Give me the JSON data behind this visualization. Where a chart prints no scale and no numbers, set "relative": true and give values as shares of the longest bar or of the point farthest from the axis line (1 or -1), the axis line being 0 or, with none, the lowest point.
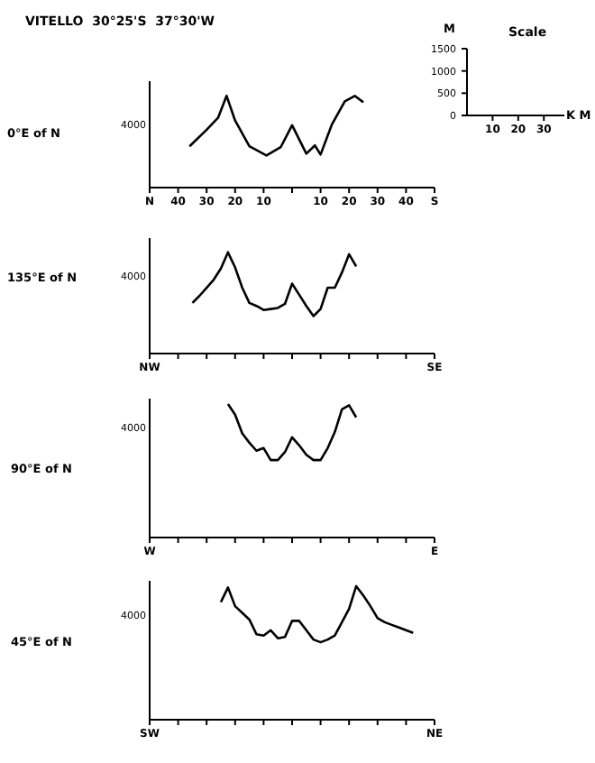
{
  "chart_data": [
    {
      "type": "line",
      "title": "VITELLO  30°25'S  37°30'W",
      "ylabel": "0°E of N",
      "marker": "none",
      "relative": true,
      "annotations": [
        "4000"
      ],
      "xlim": [
        -50,
        50
      ],
      "xticks": [
        {
          "value": -50,
          "label": "N"
        },
        {
          "value": -40,
          "label": "40"
        },
        {
          "value": -30,
          "label": "30"
        },
        {
          "value": -20,
          "label": "20"
        },
        {
          "value": -10,
          "label": "10"
        },
        {
          "value": 0,
          "label": null
        },
        {
          "value": 10,
          "label": "10"
        },
        {
          "value": 20,
          "label": "20"
        },
        {
          "value": 30,
          "label": "30"
        },
        {
          "value": 40,
          "label": "40"
        },
        {
          "value": 50,
          "label": "S"
        }
      ],
      "x": [
        -36,
        -30,
        -26,
        -23,
        -20,
        -15,
        -9,
        -4,
        0,
        5,
        8,
        10,
        14,
        18.5,
        22,
        25
      ],
      "series": [
        {
          "color": "#000000",
          "values": [
            0.45,
            0.63,
            0.76,
            1,
            0.73,
            0.45,
            0.35,
            0.44,
            0.68,
            0.37,
            0.46,
            0.36,
            0.69,
            0.94,
            1,
            0.93
          ]
        }
      ]
    },
    {
      "type": "line",
      "ylabel": "135°E of N",
      "marker": "none",
      "relative": true,
      "annotations": [
        "4000"
      ],
      "categories": [
        "NW",
        null,
        null,
        null,
        null,
        null,
        null,
        null,
        null,
        null,
        null,
        null,
        null,
        null,
        null,
        null,
        null,
        null,
        null,
        null,
        null,
        null,
        null,
        null,
        null,
        null,
        null,
        null,
        null,
        null,
        null,
        null,
        null,
        null,
        null,
        null,
        null,
        null,
        null,
        null,
        "SE"
      ],
      "series": [
        {
          "color": "#000000",
          "values": [
            null,
            null,
            null,
            null,
            null,
            null,
            0.5,
            0.57,
            0.65,
            0.73,
            0.84,
            1,
            0.85,
            0.65,
            0.5,
            0.47,
            0.43,
            0.44,
            0.45,
            0.49,
            0.69,
            0.58,
            0.47,
            0.37,
            0.44,
            0.65,
            0.65,
            0.8,
            0.98,
            0.86,
            null,
            null,
            null,
            null,
            null,
            null,
            null,
            null,
            null,
            null,
            null
          ]
        }
      ]
    },
    {
      "type": "line",
      "ylabel": "90°E of N",
      "marker": "none",
      "relative": true,
      "annotations": [
        "4000"
      ],
      "categories": [
        "W",
        null,
        null,
        null,
        null,
        null,
        null,
        null,
        null,
        null,
        null,
        null,
        null,
        null,
        null,
        null,
        null,
        null,
        null,
        null,
        null,
        null,
        null,
        null,
        null,
        null,
        null,
        null,
        null,
        null,
        null,
        null,
        null,
        null,
        null,
        null,
        null,
        null,
        null,
        null,
        "E"
      ],
      "series": [
        {
          "color": "#000000",
          "values": [
            null,
            null,
            null,
            null,
            null,
            null,
            null,
            null,
            null,
            null,
            null,
            1,
            0.92,
            0.78,
            0.71,
            0.65,
            0.67,
            0.58,
            0.58,
            0.64,
            0.75,
            0.69,
            0.62,
            0.58,
            0.58,
            0.67,
            0.79,
            0.96,
            0.99,
            0.9,
            null,
            null,
            null,
            null,
            null,
            null,
            null,
            null,
            null,
            null,
            null
          ]
        }
      ]
    },
    {
      "type": "line",
      "ylabel": "45°E of N",
      "marker": "none",
      "relative": true,
      "annotations": [
        "4000"
      ],
      "categories": [
        "SW",
        null,
        null,
        null,
        null,
        null,
        null,
        null,
        null,
        null,
        null,
        null,
        null,
        null,
        null,
        null,
        null,
        null,
        null,
        null,
        null,
        null,
        null,
        null,
        null,
        null,
        null,
        null,
        null,
        null,
        null,
        null,
        null,
        null,
        null,
        null,
        null,
        null,
        null,
        null,
        "NE"
      ],
      "series": [
        {
          "color": "#000000",
          "values": [
            null,
            null,
            null,
            null,
            null,
            null,
            null,
            null,
            null,
            null,
            0.88,
            0.99,
            0.85,
            0.8,
            0.75,
            0.64,
            0.63,
            0.67,
            0.61,
            0.62,
            0.74,
            0.74,
            0.67,
            0.6,
            0.58,
            0.6,
            0.63,
            0.73,
            0.83,
            1,
            0.93,
            0.85,
            0.76,
            0.73,
            0.71,
            0.69,
            0.67,
            0.65,
            null,
            null,
            null
          ]
        }
      ]
    },
    {
      "type": "line",
      "title": "Scale",
      "ylabel": "M",
      "xlabel": "K M",
      "xlim": [
        0,
        38
      ],
      "xticks": [
        10,
        20,
        30
      ],
      "ylim": [
        0,
        1500
      ],
      "yticks": [
        0,
        500,
        1000,
        1500
      ]
    }
  ]
}
